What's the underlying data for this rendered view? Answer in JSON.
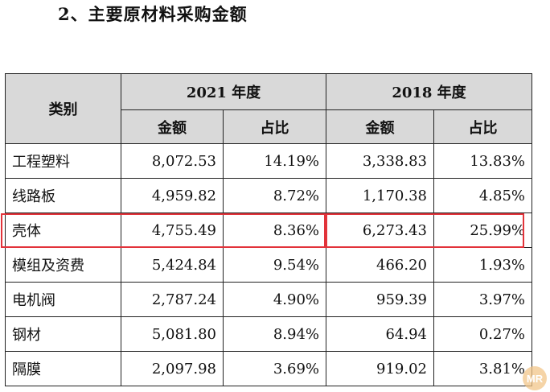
{
  "heading": "2、主要原材料采购金额",
  "table": {
    "category_header": "类别",
    "period_2021": "2021 年度",
    "period_2018": "2018 年度",
    "amount_label": "金额",
    "share_label": "占比",
    "rows": [
      {
        "name": "工程塑料",
        "a2021": "8,072.53",
        "p2021": "14.19%",
        "a2018": "3,338.83",
        "p2018": "13.83%"
      },
      {
        "name": "线路板",
        "a2021": "4,959.82",
        "p2021": "8.72%",
        "a2018": "1,170.38",
        "p2018": "4.85%"
      },
      {
        "name": "壳体",
        "a2021": "4,755.49",
        "p2021": "8.36%",
        "a2018": "6,273.43",
        "p2018": "25.99%"
      },
      {
        "name": "模组及资费",
        "a2021": "5,424.84",
        "p2021": "9.54%",
        "a2018": "466.20",
        "p2018": "1.93%"
      },
      {
        "name": "电机阀",
        "a2021": "2,787.24",
        "p2021": "4.90%",
        "a2018": "959.39",
        "p2018": "3.97%"
      },
      {
        "name": "钢材",
        "a2021": "5,081.80",
        "p2021": "8.94%",
        "a2018": "64.94",
        "p2018": "0.27%"
      },
      {
        "name": "隔膜",
        "a2021": "2,097.98",
        "p2021": "3.69%",
        "a2018": "919.02",
        "p2018": "3.81%"
      }
    ]
  },
  "highlight_color": "#e2333a",
  "header_fill": "#d9d9d9",
  "watermark": {
    "text": "MR",
    "icon": "mr-badge-icon"
  }
}
